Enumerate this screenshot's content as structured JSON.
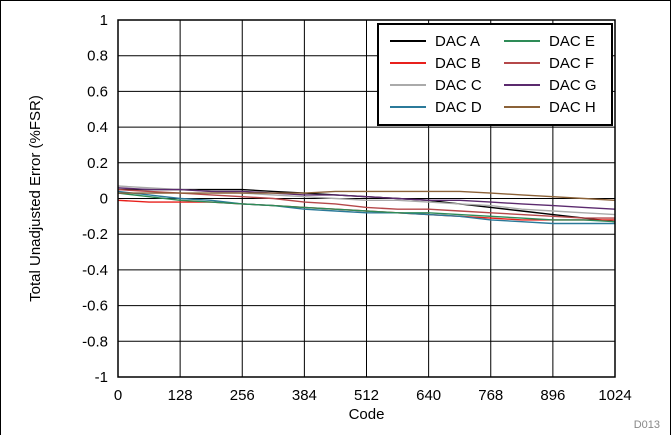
{
  "figure_id": "D013",
  "chart_data": {
    "type": "line",
    "xlabel": "Code",
    "ylabel": "Total Unadjusted Error (%FSR)",
    "xlim": [
      0,
      1024
    ],
    "ylim": [
      -1,
      1
    ],
    "xticks": [
      0,
      128,
      256,
      384,
      512,
      640,
      768,
      896,
      1024
    ],
    "yticks": [
      -1,
      -0.8,
      -0.6,
      -0.4,
      -0.2,
      0,
      0.2,
      0.4,
      0.6,
      0.8,
      1
    ],
    "ytick_labels": [
      "-1",
      "-0.8",
      "-0.6",
      "-0.4",
      "-0.2",
      "0",
      "0.2",
      "0.4",
      "0.6",
      "0.8",
      "1"
    ],
    "grid": true,
    "legend_position": "top-right",
    "x": [
      0,
      64,
      128,
      192,
      256,
      320,
      384,
      448,
      512,
      576,
      640,
      704,
      768,
      832,
      896,
      960,
      1024
    ],
    "series": [
      {
        "name": "DAC A",
        "color": "#000000",
        "values": [
          0.05,
          0.05,
          0.05,
          0.05,
          0.05,
          0.04,
          0.03,
          0.02,
          0.01,
          0.0,
          -0.01,
          -0.03,
          -0.05,
          -0.07,
          -0.09,
          -0.11,
          -0.13
        ]
      },
      {
        "name": "DAC B",
        "color": "#e8201c",
        "values": [
          -0.01,
          -0.02,
          -0.02,
          -0.02,
          -0.03,
          -0.04,
          -0.05,
          -0.06,
          -0.07,
          -0.08,
          -0.09,
          -0.1,
          -0.11,
          -0.12,
          -0.12,
          -0.12,
          -0.12
        ]
      },
      {
        "name": "DAC C",
        "color": "#aaaaaa",
        "values": [
          0.07,
          0.06,
          0.05,
          0.04,
          0.03,
          0.02,
          0.01,
          0.0,
          -0.01,
          -0.01,
          -0.02,
          -0.03,
          -0.04,
          -0.06,
          -0.07,
          -0.08,
          -0.09
        ]
      },
      {
        "name": "DAC D",
        "color": "#2b7a9a",
        "values": [
          0.04,
          0.02,
          0.0,
          -0.01,
          -0.03,
          -0.04,
          -0.06,
          -0.07,
          -0.08,
          -0.08,
          -0.09,
          -0.1,
          -0.12,
          -0.13,
          -0.14,
          -0.14,
          -0.14
        ]
      },
      {
        "name": "DAC E",
        "color": "#2e8b57",
        "values": [
          0.03,
          0.01,
          -0.01,
          -0.02,
          -0.03,
          -0.04,
          -0.05,
          -0.06,
          -0.07,
          -0.08,
          -0.08,
          -0.09,
          -0.1,
          -0.11,
          -0.12,
          -0.12,
          -0.13
        ]
      },
      {
        "name": "DAC F",
        "color": "#b5484a",
        "values": [
          0.05,
          0.04,
          0.03,
          0.02,
          0.01,
          0.0,
          -0.02,
          -0.03,
          -0.05,
          -0.06,
          -0.06,
          -0.07,
          -0.08,
          -0.09,
          -0.1,
          -0.11,
          -0.11
        ]
      },
      {
        "name": "DAC G",
        "color": "#5b2a6e",
        "values": [
          0.06,
          0.05,
          0.05,
          0.04,
          0.04,
          0.03,
          0.02,
          0.02,
          0.01,
          0.0,
          -0.01,
          -0.01,
          -0.02,
          -0.03,
          -0.04,
          -0.05,
          -0.06
        ]
      },
      {
        "name": "DAC H",
        "color": "#8b6238",
        "values": [
          0.03,
          0.03,
          0.03,
          0.03,
          0.03,
          0.03,
          0.03,
          0.04,
          0.04,
          0.04,
          0.04,
          0.04,
          0.03,
          0.02,
          0.01,
          0.0,
          -0.01
        ]
      }
    ]
  }
}
